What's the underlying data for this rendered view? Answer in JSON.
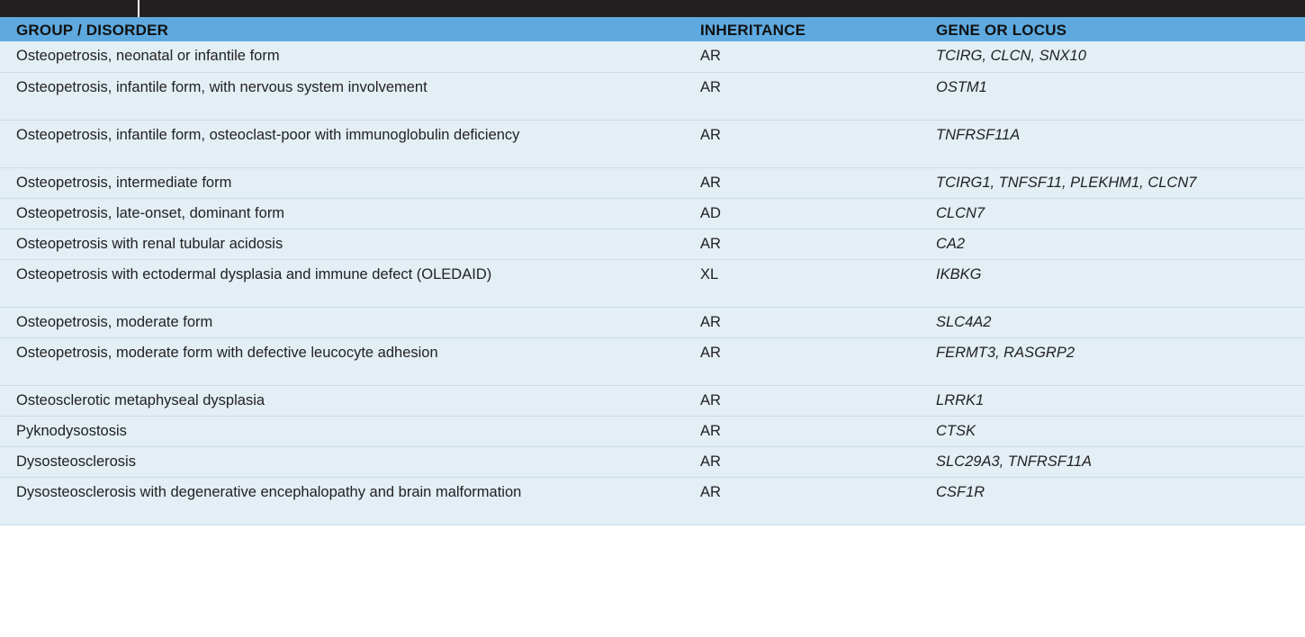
{
  "table": {
    "headers": {
      "disorder": "GROUP / DISORDER",
      "inheritance": "INHERITANCE",
      "gene": "GENE OR LOCUS"
    },
    "rows": [
      {
        "disorder": "Osteopetrosis, neonatal or infantile form",
        "inheritance": "AR",
        "gene": "TCIRG, CLCN, SNX10"
      },
      {
        "disorder": "Osteopetrosis, infantile form, with nervous system involvement",
        "inheritance": "AR",
        "gene": "OSTM1"
      },
      {
        "disorder": "Osteopetrosis, infantile form, osteoclast-poor with immunoglobulin deficiency",
        "inheritance": "AR",
        "gene": "TNFRSF11A"
      },
      {
        "disorder": "Osteopetrosis, intermediate form",
        "inheritance": "AR",
        "gene": "TCIRG1, TNFSF11, PLEKHM1, CLCN7"
      },
      {
        "disorder": "Osteopetrosis, late-onset, dominant form",
        "inheritance": "AD",
        "gene": "CLCN7"
      },
      {
        "disorder": "Osteopetrosis with renal tubular acidosis",
        "inheritance": "AR",
        "gene": "CA2"
      },
      {
        "disorder": "Osteopetrosis with ectodermal dysplasia and immune defect (OLEDAID)",
        "inheritance": "XL",
        "gene": "IKBKG"
      },
      {
        "disorder": "Osteopetrosis, moderate form",
        "inheritance": "AR",
        "gene": "SLC4A2"
      },
      {
        "disorder": "Osteopetrosis, moderate form with defective leucocyte adhesion",
        "inheritance": "AR",
        "gene": "FERMT3, RASGRP2"
      },
      {
        "disorder": "Osteosclerotic metaphyseal dysplasia",
        "inheritance": "AR",
        "gene": "LRRK1"
      },
      {
        "disorder": "Pyknodysostosis",
        "inheritance": "AR",
        "gene": "CTSK"
      },
      {
        "disorder": "Dysosteosclerosis",
        "inheritance": "AR",
        "gene": "SLC29A3, TNFRSF11A"
      },
      {
        "disorder": "Dysosteosclerosis with degenerative encephalopathy and brain malformation",
        "inheritance": "AR",
        "gene": "CSF1R"
      }
    ]
  },
  "colors": {
    "header_bg": "#5eaae0",
    "row_bg": "#e3eef5",
    "topbar_bg": "#231f20"
  }
}
